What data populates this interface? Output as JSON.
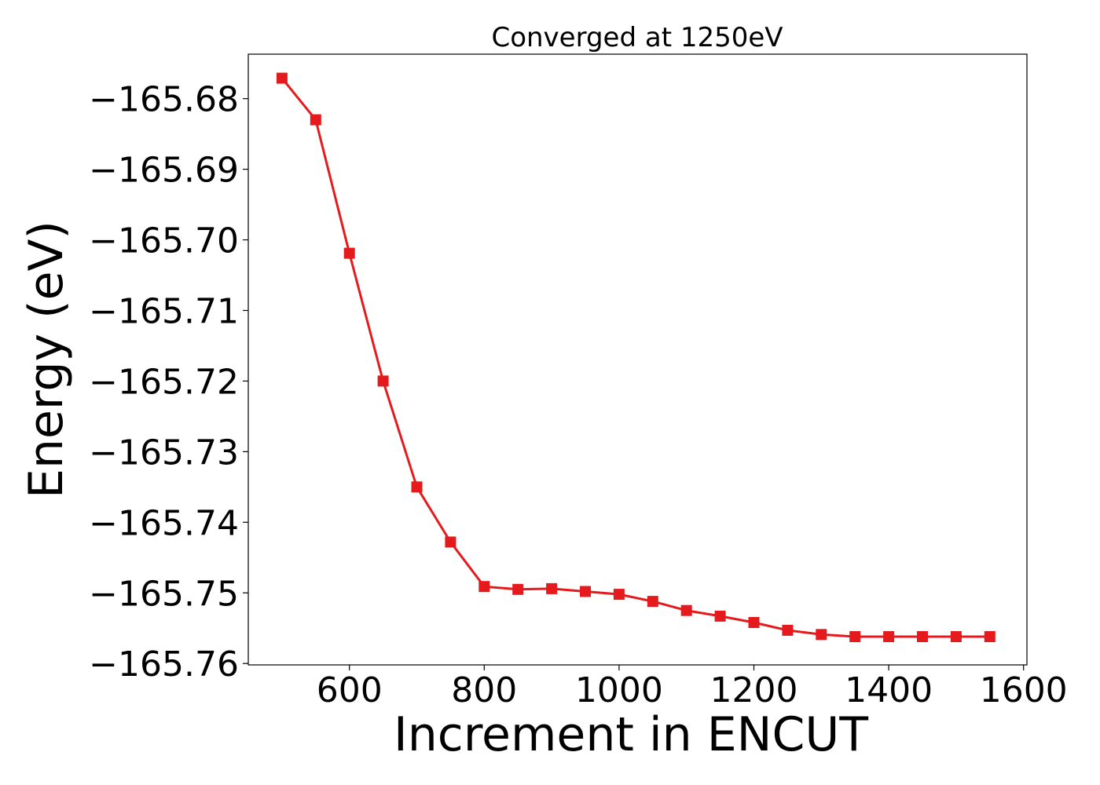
{
  "chart_data": {
    "type": "line",
    "title": "Converged at 1250eV",
    "xlabel": "Increment in ENCUT",
    "ylabel": "Energy (eV)",
    "xlim": [
      450,
      1605
    ],
    "ylim": [
      -165.7602,
      -165.6737
    ],
    "x_ticks": [
      600,
      800,
      1000,
      1200,
      1400,
      1600
    ],
    "x_tick_labels": [
      "600",
      "800",
      "1000",
      "1200",
      "1400",
      "1600"
    ],
    "y_ticks": [
      -165.68,
      -165.69,
      -165.7,
      -165.71,
      -165.72,
      -165.73,
      -165.74,
      -165.75,
      -165.76
    ],
    "y_tick_labels": [
      "−165.68",
      "−165.69",
      "−165.70",
      "−165.71",
      "−165.72",
      "−165.73",
      "−165.74",
      "−165.75",
      "−165.76"
    ],
    "grid": false,
    "legend": "none",
    "marker": "square",
    "series": [
      {
        "color": "#e41a1c",
        "x": [
          500,
          550,
          600,
          650,
          700,
          750,
          800,
          850,
          900,
          950,
          1000,
          1050,
          1100,
          1150,
          1200,
          1250,
          1300,
          1350,
          1400,
          1450,
          1500,
          1550
        ],
        "y": [
          -165.6771,
          -165.683,
          -165.7019,
          -165.72,
          -165.735,
          -165.7428,
          -165.7491,
          -165.7495,
          -165.7494,
          -165.7498,
          -165.7502,
          -165.7512,
          -165.7525,
          -165.7533,
          -165.7542,
          -165.7553,
          -165.7559,
          -165.7562,
          -165.7562,
          -165.7562,
          -165.7562,
          -165.7562
        ]
      }
    ]
  }
}
